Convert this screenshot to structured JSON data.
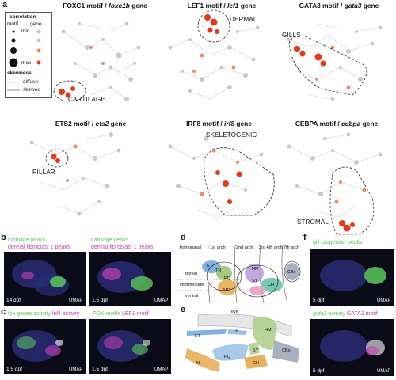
{
  "panel_letters": {
    "a": "a",
    "b": "b",
    "c": "c",
    "d": "d",
    "e": "e",
    "f": "f"
  },
  "legend": {
    "title_correlation": "correlation",
    "col_motif": "motif",
    "col_gene": "gene",
    "min": "min",
    "max": "max",
    "title_skewness": "skewness",
    "diffuse": "diffuse",
    "skewed": "skewed"
  },
  "panels_a": [
    {
      "motif": "FOXC1 motif / ",
      "gene": "foxc1b",
      "suffix": " gene",
      "region": "CARTILAGE"
    },
    {
      "motif": "LEF1 motif / ",
      "gene": "lef1",
      "suffix": " gene",
      "region": "DERMAL"
    },
    {
      "motif": "GATA3 motif / ",
      "gene": "gata3",
      "suffix": " gene",
      "region": "GILLS"
    },
    {
      "motif": "ETS2 motif / ",
      "gene": "ets2",
      "suffix": " gene",
      "region": "PILLAR"
    },
    {
      "motif": "IRF8 motif / ",
      "gene": "irf8",
      "suffix": " gene",
      "region": "SKELETOGENIC"
    },
    {
      "motif": "CEBPA motif / ",
      "gene": "cebpa",
      "suffix": " gene",
      "region": "STROMAL"
    }
  ],
  "panel_b": {
    "left_title_1": "cartilage peaks",
    "left_title_2": "dermal fibroblast 1 peaks",
    "right_title_1": "cartilage peaks",
    "right_title_2": "dermal fibroblast 1 peaks",
    "left_stage": "14 dpf",
    "right_stage": "1.5 dpf",
    "umap": "UMAP"
  },
  "panel_c": {
    "left_title_a": "fox",
    "left_title_b": " genes activity ",
    "left_title_c": "lef1",
    "left_title_d": " activity",
    "right_title_a": "FOX motifs ",
    "right_title_b": "LEF1 motif",
    "left_stage": "1.5 dpf",
    "right_stage": "1.5 dpf",
    "umap": "UMAP"
  },
  "panel_d": {
    "frontonasal": "frontonasal",
    "arch1": "1st arch",
    "arch2": "2nd arch",
    "arch3": "3rd-6th arch",
    "arch7": "7th arch",
    "dorsal": "dorsal",
    "intermediate": "intermediate",
    "ventral": "ventral",
    "ET": "ET",
    "TR": "TR",
    "PQ": "PQ",
    "MC": "MC",
    "HM": "HM",
    "SY": "SY",
    "CH": "CH",
    "CBs": "CBs"
  },
  "panel_e": {
    "eye": "eye",
    "ET": "ET",
    "TR": "TR",
    "HM": "HM",
    "PQ": "PQ",
    "SY": "SY",
    "CH": "CH",
    "CBs": "CBs",
    "M": "M"
  },
  "panel_f": {
    "top_title": "gill progenitor peaks",
    "bottom_title_a": "gata3",
    "bottom_title_b": " activity ",
    "bottom_title_c": "GATA3 motif",
    "top_stage": "5 dpf",
    "bottom_stage": "5 dpf",
    "umap": "UMAP"
  },
  "colors": {
    "hot": "#e23a1a",
    "warm": "#ef8a6e",
    "grey": "#c8c8c8",
    "dark_bg": "#0b0b18",
    "green": "#5cc85c",
    "magenta": "#c441b8"
  }
}
